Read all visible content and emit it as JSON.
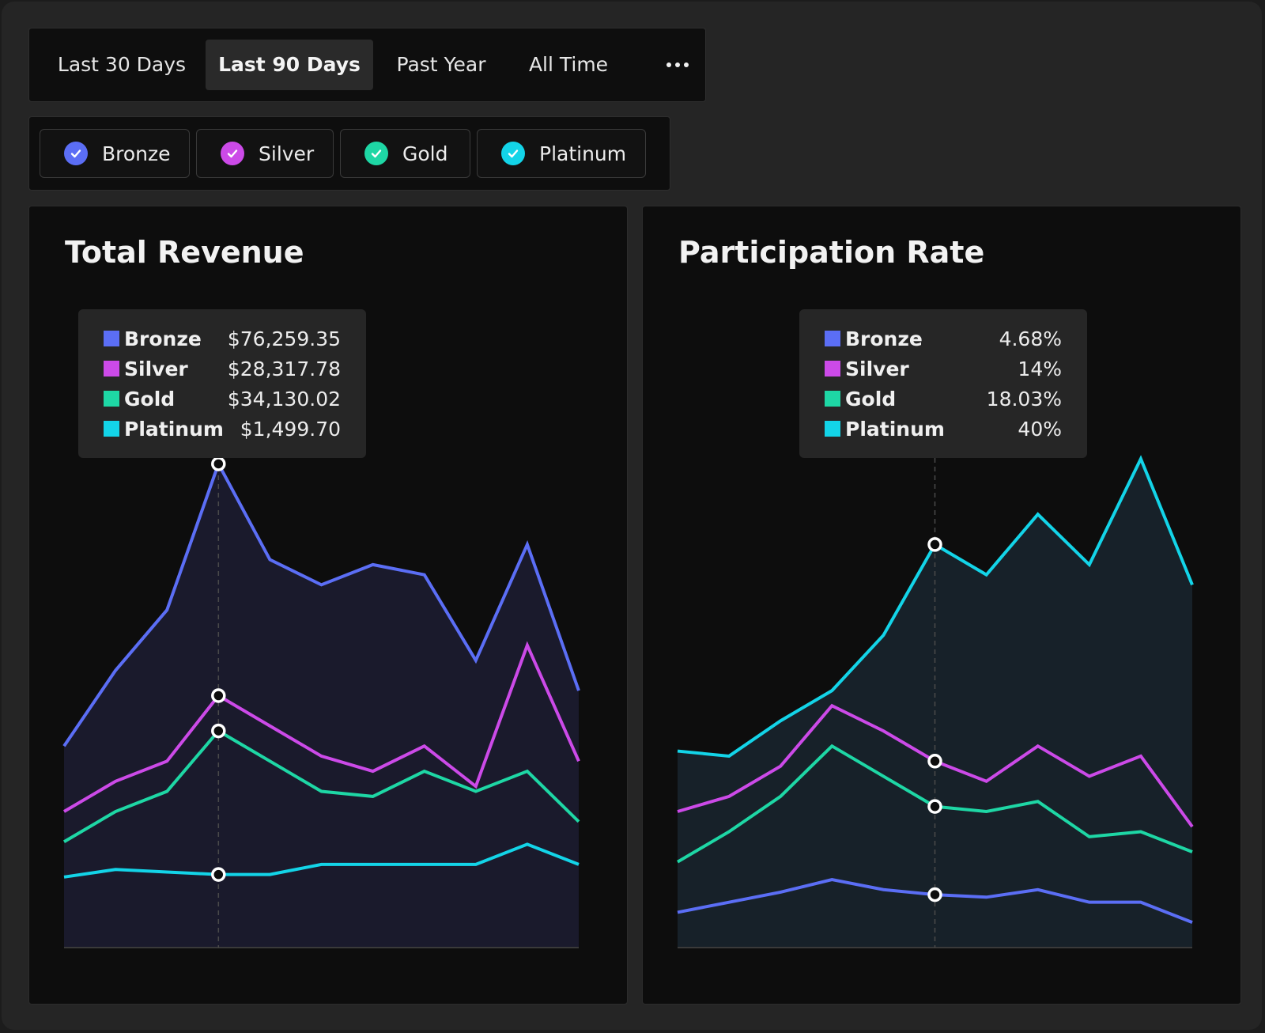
{
  "range_tabs": [
    {
      "label": "Last 30 Days",
      "active": false
    },
    {
      "label": "Last 90 Days",
      "active": true
    },
    {
      "label": "Past Year",
      "active": false
    },
    {
      "label": "All Time",
      "active": false
    }
  ],
  "series_filters": [
    {
      "label": "Bronze",
      "color": "#5b6ef5",
      "checked": true
    },
    {
      "label": "Silver",
      "color": "#cc4ae8",
      "checked": true
    },
    {
      "label": "Gold",
      "color": "#1ed7a5",
      "checked": true
    },
    {
      "label": "Platinum",
      "color": "#13d4e8",
      "checked": true
    }
  ],
  "revenue": {
    "title": "Total Revenue",
    "tooltip": [
      {
        "name": "Bronze",
        "value": "$76,259.35",
        "color": "#5b6ef5"
      },
      {
        "name": "Silver",
        "value": "$28,317.78",
        "color": "#cc4ae8"
      },
      {
        "name": "Gold",
        "value": "$34,130.02",
        "color": "#1ed7a5"
      },
      {
        "name": "Platinum",
        "value": "$1,499.70",
        "color": "#13d4e8"
      }
    ]
  },
  "participation": {
    "title": "Participation Rate",
    "tooltip": [
      {
        "name": "Bronze",
        "value": "4.68%",
        "color": "#5b6ef5"
      },
      {
        "name": "Silver",
        "value": "14%",
        "color": "#cc4ae8"
      },
      {
        "name": "Gold",
        "value": "18.03%",
        "color": "#1ed7a5"
      },
      {
        "name": "Platinum",
        "value": "40%",
        "color": "#13d4e8"
      }
    ]
  },
  "chart_data": [
    {
      "type": "line",
      "title": "Total Revenue",
      "x": [
        0,
        1,
        2,
        3,
        4,
        5,
        6,
        7,
        8,
        9,
        10
      ],
      "ylim": [
        0,
        100
      ],
      "highlight_index": 3,
      "series": [
        {
          "name": "Bronze",
          "color": "#5b6ef5",
          "values": [
            40,
            55,
            67,
            96,
            77,
            72,
            76,
            74,
            57,
            80,
            51
          ]
        },
        {
          "name": "Silver",
          "color": "#cc4ae8",
          "values": [
            27,
            33,
            37,
            50,
            44,
            38,
            35,
            40,
            32,
            60,
            37
          ]
        },
        {
          "name": "Gold",
          "color": "#1ed7a5",
          "values": [
            21,
            27,
            31,
            43,
            37,
            31,
            30,
            35,
            31,
            35,
            25
          ]
        },
        {
          "name": "Platinum",
          "color": "#13d4e8",
          "values": [
            14,
            15.5,
            15,
            14.5,
            14.5,
            16.5,
            16.5,
            16.5,
            16.5,
            20.5,
            16.5
          ]
        }
      ]
    },
    {
      "type": "line",
      "title": "Participation Rate",
      "x": [
        0,
        1,
        2,
        3,
        4,
        5,
        6,
        7,
        8,
        9,
        10
      ],
      "ylim": [
        0,
        100
      ],
      "highlight_index": 5,
      "series": [
        {
          "name": "Bronze",
          "color": "#5b6ef5",
          "values": [
            7,
            9,
            11,
            13.5,
            11.5,
            10.5,
            10,
            11.5,
            9,
            9,
            5
          ]
        },
        {
          "name": "Silver",
          "color": "#cc4ae8",
          "values": [
            27,
            30,
            36,
            48,
            43,
            37,
            33,
            40,
            34,
            38,
            24
          ]
        },
        {
          "name": "Gold",
          "color": "#1ed7a5",
          "values": [
            17,
            23,
            30,
            40,
            34,
            28,
            27,
            29,
            22,
            23,
            19
          ]
        },
        {
          "name": "Platinum",
          "color": "#13d4e8",
          "values": [
            39,
            38,
            45,
            51,
            62,
            80,
            74,
            86,
            76,
            97,
            72
          ]
        }
      ]
    }
  ]
}
